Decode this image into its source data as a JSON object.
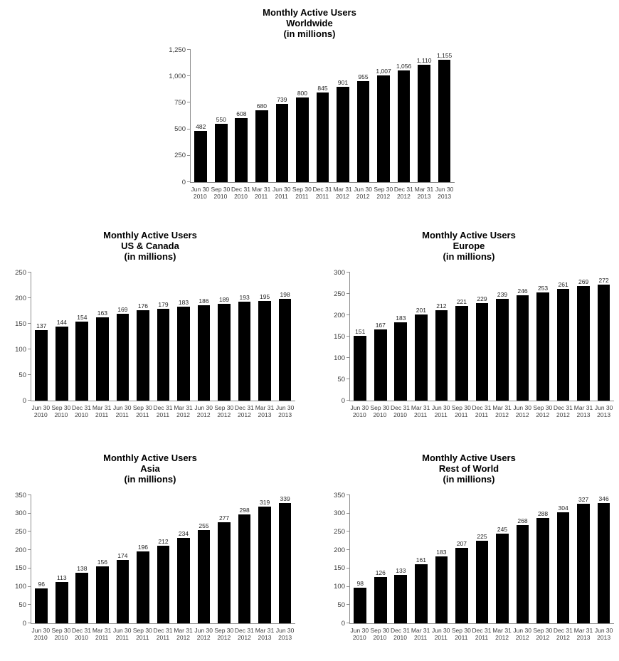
{
  "page": {
    "background": "#ffffff",
    "bar_color": "#000000",
    "axis_color": "#8c8c8c",
    "text_color": "#3d3d3d"
  },
  "chart_data": [
    {
      "id": "worldwide",
      "type": "bar",
      "title_lines": [
        "Monthly Active Users",
        "Worldwide",
        "(in millions)"
      ],
      "categories": [
        [
          "Jun 30",
          "2010"
        ],
        [
          "Sep 30",
          "2010"
        ],
        [
          "Dec 31",
          "2010"
        ],
        [
          "Mar 31",
          "2011"
        ],
        [
          "Jun 30",
          "2011"
        ],
        [
          "Sep 30",
          "2011"
        ],
        [
          "Dec 31",
          "2011"
        ],
        [
          "Mar 31",
          "2012"
        ],
        [
          "Jun 30",
          "2012"
        ],
        [
          "Sep 30",
          "2012"
        ],
        [
          "Dec 31",
          "2012"
        ],
        [
          "Mar 31",
          "2013"
        ],
        [
          "Jun 30",
          "2013"
        ]
      ],
      "values": [
        482,
        550,
        608,
        680,
        739,
        800,
        845,
        901,
        955,
        1007,
        1056,
        1110,
        1155
      ],
      "value_labels": [
        "482",
        "550",
        "608",
        "680",
        "739",
        "800",
        "845",
        "901",
        "955",
        "1,007",
        "1,056",
        "1,110",
        "1,155"
      ],
      "ylim": [
        0,
        1250
      ],
      "yticks": [
        0,
        250,
        500,
        750,
        1000,
        1250
      ],
      "ytick_labels": [
        "0",
        "250",
        "500",
        "750",
        "1,000",
        "1,250"
      ],
      "xlabel": "",
      "ylabel": "",
      "bar_color": "#000000",
      "grid": false,
      "legend": false
    },
    {
      "id": "us-canada",
      "type": "bar",
      "title_lines": [
        "Monthly Active Users",
        "US & Canada",
        "(in millions)"
      ],
      "categories": [
        [
          "Jun 30",
          "2010"
        ],
        [
          "Sep 30",
          "2010"
        ],
        [
          "Dec 31",
          "2010"
        ],
        [
          "Mar 31",
          "2011"
        ],
        [
          "Jun 30",
          "2011"
        ],
        [
          "Sep 30",
          "2011"
        ],
        [
          "Dec 31",
          "2011"
        ],
        [
          "Mar 31",
          "2012"
        ],
        [
          "Jun 30",
          "2012"
        ],
        [
          "Sep 30",
          "2012"
        ],
        [
          "Dec 31",
          "2012"
        ],
        [
          "Mar 31",
          "2013"
        ],
        [
          "Jun 30",
          "2013"
        ]
      ],
      "values": [
        137,
        144,
        154,
        163,
        169,
        176,
        179,
        183,
        186,
        189,
        193,
        195,
        198
      ],
      "value_labels": [
        "137",
        "144",
        "154",
        "163",
        "169",
        "176",
        "179",
        "183",
        "186",
        "189",
        "193",
        "195",
        "198"
      ],
      "ylim": [
        0,
        250
      ],
      "yticks": [
        0,
        50,
        100,
        150,
        200,
        250
      ],
      "ytick_labels": [
        "0",
        "50",
        "100",
        "150",
        "200",
        "250"
      ],
      "xlabel": "",
      "ylabel": "",
      "bar_color": "#000000",
      "grid": false,
      "legend": false
    },
    {
      "id": "europe",
      "type": "bar",
      "title_lines": [
        "Monthly Active Users",
        "Europe",
        "(in millions)"
      ],
      "categories": [
        [
          "Jun 30",
          "2010"
        ],
        [
          "Sep 30",
          "2010"
        ],
        [
          "Dec 31",
          "2010"
        ],
        [
          "Mar 31",
          "2011"
        ],
        [
          "Jun 30",
          "2011"
        ],
        [
          "Sep 30",
          "2011"
        ],
        [
          "Dec 31",
          "2011"
        ],
        [
          "Mar 31",
          "2012"
        ],
        [
          "Jun 30",
          "2012"
        ],
        [
          "Sep 30",
          "2012"
        ],
        [
          "Dec 31",
          "2012"
        ],
        [
          "Mar 31",
          "2013"
        ],
        [
          "Jun 30",
          "2013"
        ]
      ],
      "values": [
        151,
        167,
        183,
        201,
        212,
        221,
        229,
        239,
        246,
        253,
        261,
        269,
        272
      ],
      "value_labels": [
        "151",
        "167",
        "183",
        "201",
        "212",
        "221",
        "229",
        "239",
        "246",
        "253",
        "261",
        "269",
        "272"
      ],
      "ylim": [
        0,
        300
      ],
      "yticks": [
        0,
        50,
        100,
        150,
        200,
        250,
        300
      ],
      "ytick_labels": [
        "0",
        "50",
        "100",
        "150",
        "200",
        "250",
        "300"
      ],
      "xlabel": "",
      "ylabel": "",
      "bar_color": "#000000",
      "grid": false,
      "legend": false
    },
    {
      "id": "asia",
      "type": "bar",
      "title_lines": [
        "Monthly Active Users",
        "Asia",
        "(in millions)"
      ],
      "categories": [
        [
          "Jun 30",
          "2010"
        ],
        [
          "Sep 30",
          "2010"
        ],
        [
          "Dec 31",
          "2010"
        ],
        [
          "Mar 31",
          "2011"
        ],
        [
          "Jun 30",
          "2011"
        ],
        [
          "Sep 30",
          "2011"
        ],
        [
          "Dec 31",
          "2011"
        ],
        [
          "Mar 31",
          "2012"
        ],
        [
          "Jun 30",
          "2012"
        ],
        [
          "Sep 30",
          "2012"
        ],
        [
          "Dec 31",
          "2012"
        ],
        [
          "Mar 31",
          "2013"
        ],
        [
          "Jun 30",
          "2013"
        ]
      ],
      "values": [
        96,
        113,
        138,
        156,
        174,
        196,
        212,
        234,
        255,
        277,
        298,
        319,
        339
      ],
      "value_labels": [
        "96",
        "113",
        "138",
        "156",
        "174",
        "196",
        "212",
        "234",
        "255",
        "277",
        "298",
        "319",
        "339"
      ],
      "ylim": [
        0,
        350
      ],
      "yticks": [
        0,
        50,
        100,
        150,
        200,
        250,
        300,
        350
      ],
      "ytick_labels": [
        "0",
        "50",
        "100",
        "150",
        "200",
        "250",
        "300",
        "350"
      ],
      "xlabel": "",
      "ylabel": "",
      "bar_color": "#000000",
      "grid": false,
      "legend": false
    },
    {
      "id": "rest-of-world",
      "type": "bar",
      "title_lines": [
        "Monthly Active Users",
        "Rest of World",
        "(in millions)"
      ],
      "categories": [
        [
          "Jun 30",
          "2010"
        ],
        [
          "Sep 30",
          "2010"
        ],
        [
          "Dec 31",
          "2010"
        ],
        [
          "Mar 31",
          "2011"
        ],
        [
          "Jun 30",
          "2011"
        ],
        [
          "Sep 30",
          "2011"
        ],
        [
          "Dec 31",
          "2011"
        ],
        [
          "Mar 31",
          "2012"
        ],
        [
          "Jun 30",
          "2012"
        ],
        [
          "Sep 30",
          "2012"
        ],
        [
          "Dec 31",
          "2012"
        ],
        [
          "Mar 31",
          "2013"
        ],
        [
          "Jun 30",
          "2013"
        ]
      ],
      "values": [
        98,
        126,
        133,
        161,
        183,
        207,
        225,
        245,
        268,
        288,
        304,
        327,
        346
      ],
      "value_labels": [
        "98",
        "126",
        "133",
        "161",
        "183",
        "207",
        "225",
        "245",
        "268",
        "288",
        "304",
        "327",
        "346"
      ],
      "ylim": [
        0,
        350
      ],
      "yticks": [
        0,
        50,
        100,
        150,
        200,
        250,
        300,
        350
      ],
      "ytick_labels": [
        "0",
        "50",
        "100",
        "150",
        "200",
        "250",
        "300",
        "350"
      ],
      "xlabel": "",
      "ylabel": "",
      "bar_color": "#000000",
      "grid": false,
      "legend": false
    }
  ]
}
